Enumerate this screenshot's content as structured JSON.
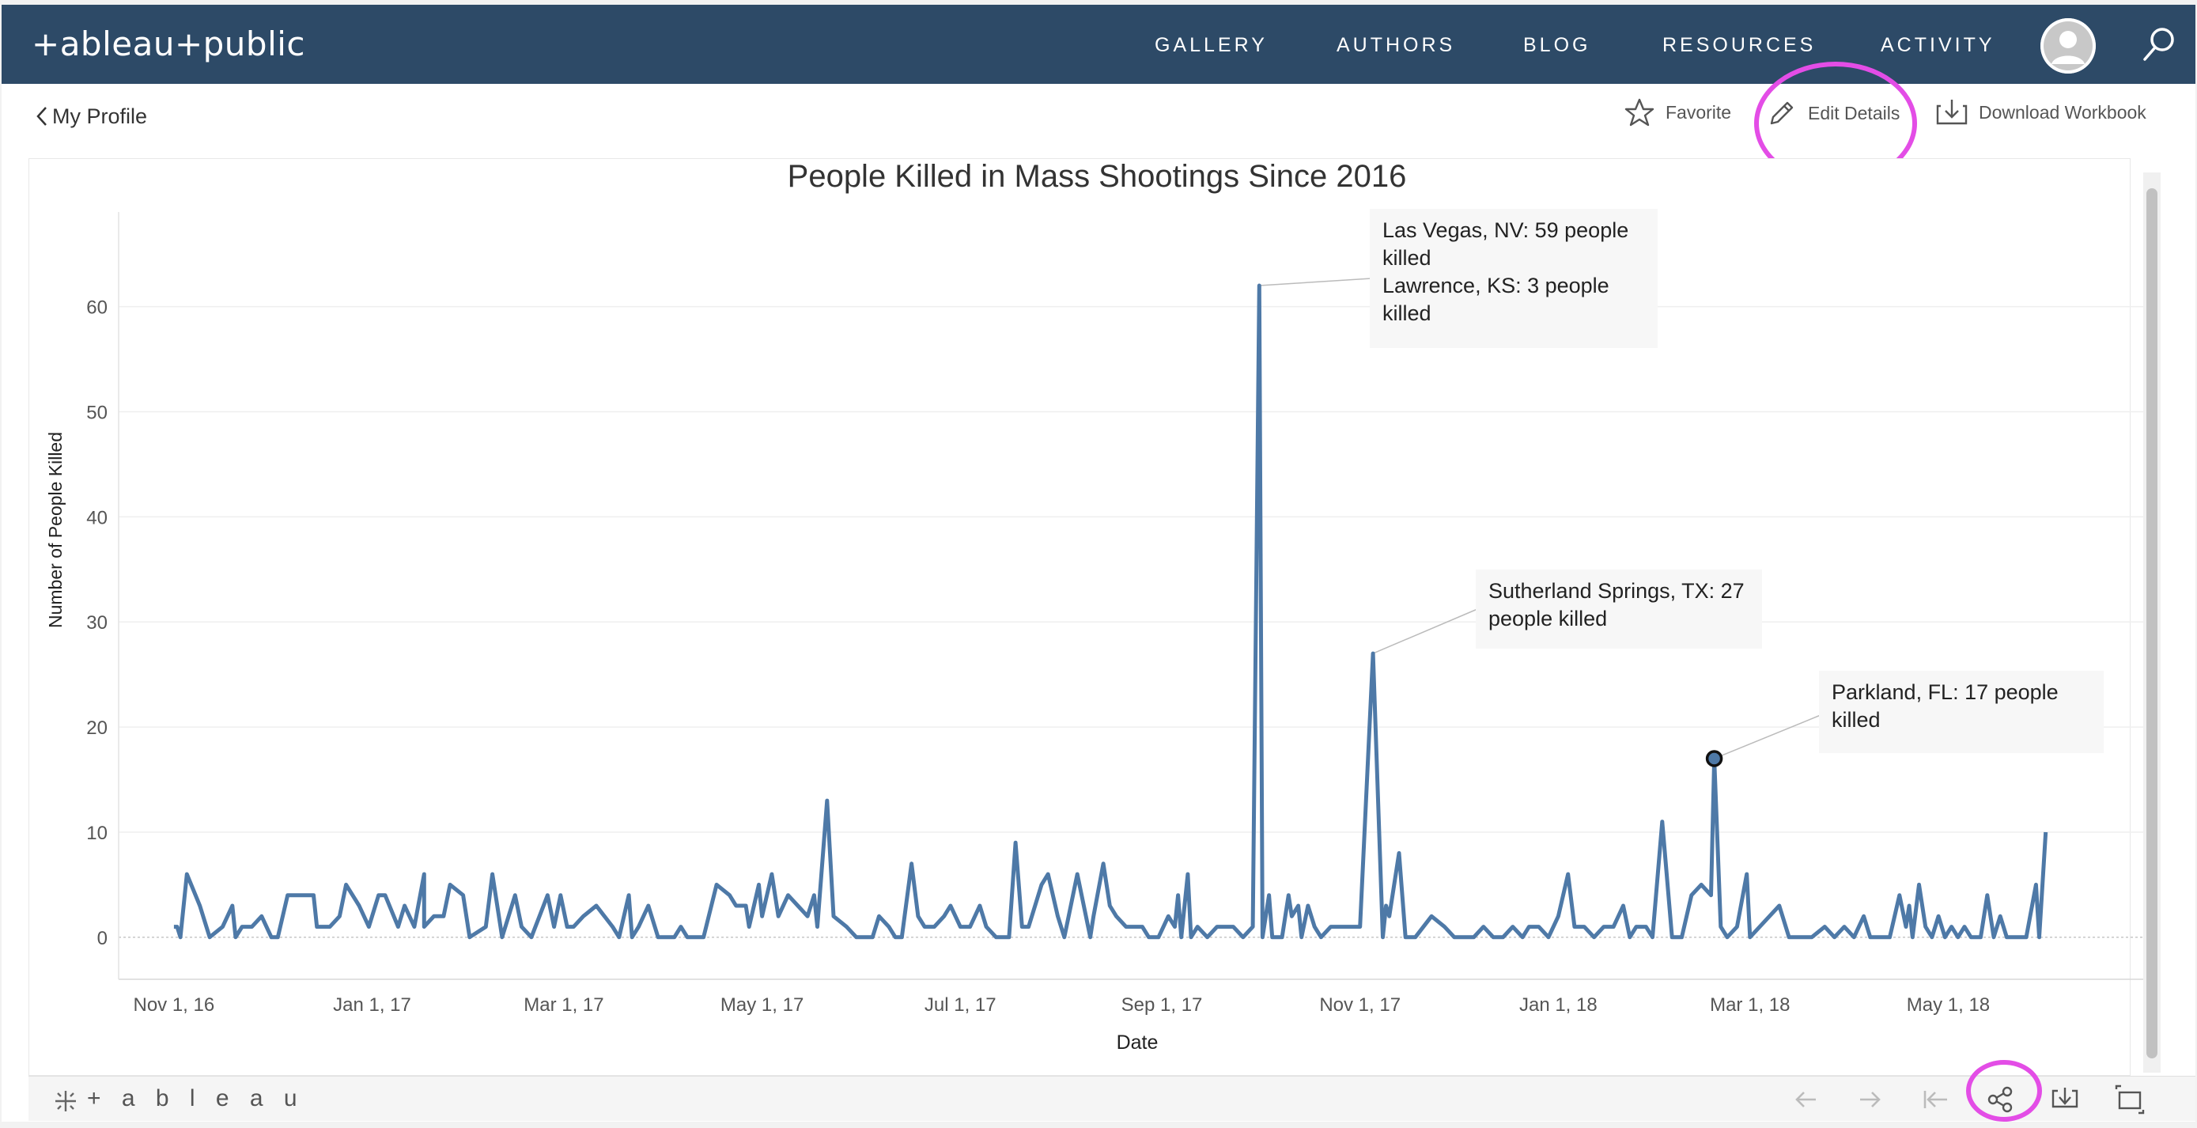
{
  "nav": {
    "logo_text": "+ableau+public",
    "links": [
      "GALLERY",
      "AUTHORS",
      "BLOG",
      "RESOURCES",
      "ACTIVITY"
    ]
  },
  "subbar": {
    "back_label": "My Profile",
    "favorite_label": "Favorite",
    "edit_label": "Edit Details",
    "download_label": "Download Workbook"
  },
  "toolbar": {
    "logo_text": "+ a b l e a u"
  },
  "colors": {
    "nav_bg": "#2d4a67",
    "line": "#4e79a7",
    "highlight_ring": "#e34de6"
  },
  "annotations": [
    {
      "id": "las-vegas",
      "lines": [
        "Las Vegas, NV: 59 people",
        "killed",
        "Lawrence, KS: 3 people",
        "killed"
      ]
    },
    {
      "id": "sutherland",
      "lines": [
        "Sutherland Springs, TX: 27",
        "people killed"
      ]
    },
    {
      "id": "parkland",
      "lines": [
        "Parkland, FL: 17 people",
        "killed"
      ]
    }
  ],
  "chart_data": {
    "type": "line",
    "title": "People Killed in Mass Shootings Since 2016",
    "xlabel": "Date",
    "ylabel": "Number of People Killed",
    "xlim": [
      "2016-10-15",
      "2018-06-30"
    ],
    "ylim": [
      -4,
      69
    ],
    "yticks": [
      0,
      10,
      20,
      30,
      40,
      50,
      60
    ],
    "xticks": [
      {
        "date": "2016-11-01",
        "label": "Nov 1, 16"
      },
      {
        "date": "2017-01-01",
        "label": "Jan 1, 17"
      },
      {
        "date": "2017-03-01",
        "label": "Mar 1, 17"
      },
      {
        "date": "2017-05-01",
        "label": "May 1, 17"
      },
      {
        "date": "2017-07-01",
        "label": "Jul 1, 17"
      },
      {
        "date": "2017-09-01",
        "label": "Sep 1, 17"
      },
      {
        "date": "2017-11-01",
        "label": "Nov 1, 17"
      },
      {
        "date": "2018-01-01",
        "label": "Jan 1, 18"
      },
      {
        "date": "2018-03-01",
        "label": "Mar 1, 18"
      },
      {
        "date": "2018-05-01",
        "label": "May 1, 18"
      }
    ],
    "grid": true,
    "series": [
      {
        "values": [
          [
            "2016-11-01",
            1
          ],
          [
            "2016-11-02",
            1
          ],
          [
            "2016-11-03",
            0
          ],
          [
            "2016-11-05",
            6
          ],
          [
            "2016-11-09",
            3
          ],
          [
            "2016-11-12",
            0
          ],
          [
            "2016-11-16",
            1
          ],
          [
            "2016-11-19",
            3
          ],
          [
            "2016-11-20",
            0
          ],
          [
            "2016-11-22",
            1
          ],
          [
            "2016-11-25",
            1
          ],
          [
            "2016-11-28",
            2
          ],
          [
            "2016-12-01",
            0
          ],
          [
            "2016-12-03",
            0
          ],
          [
            "2016-12-06",
            4
          ],
          [
            "2016-12-10",
            4
          ],
          [
            "2016-12-14",
            4
          ],
          [
            "2016-12-15",
            1
          ],
          [
            "2016-12-19",
            1
          ],
          [
            "2016-12-22",
            2
          ],
          [
            "2016-12-24",
            5
          ],
          [
            "2016-12-28",
            3
          ],
          [
            "2016-12-31",
            1
          ],
          [
            "2017-01-03",
            4
          ],
          [
            "2017-01-05",
            4
          ],
          [
            "2017-01-09",
            1
          ],
          [
            "2017-01-11",
            3
          ],
          [
            "2017-01-14",
            1
          ],
          [
            "2017-01-17",
            6
          ],
          [
            "2017-01-17",
            1
          ],
          [
            "2017-01-20",
            2
          ],
          [
            "2017-01-23",
            2
          ],
          [
            "2017-01-25",
            5
          ],
          [
            "2017-01-29",
            4
          ],
          [
            "2017-01-31",
            0
          ],
          [
            "2017-02-05",
            1
          ],
          [
            "2017-02-07",
            6
          ],
          [
            "2017-02-10",
            0
          ],
          [
            "2017-02-14",
            4
          ],
          [
            "2017-02-16",
            1
          ],
          [
            "2017-02-19",
            0
          ],
          [
            "2017-02-24",
            4
          ],
          [
            "2017-02-26",
            1
          ],
          [
            "2017-02-28",
            4
          ],
          [
            "2017-03-02",
            1
          ],
          [
            "2017-03-04",
            1
          ],
          [
            "2017-03-07",
            2
          ],
          [
            "2017-03-11",
            3
          ],
          [
            "2017-03-16",
            1
          ],
          [
            "2017-03-18",
            0
          ],
          [
            "2017-03-21",
            4
          ],
          [
            "2017-03-22",
            0
          ],
          [
            "2017-03-24",
            1
          ],
          [
            "2017-03-27",
            3
          ],
          [
            "2017-03-30",
            0
          ],
          [
            "2017-04-01",
            0
          ],
          [
            "2017-04-04",
            0
          ],
          [
            "2017-04-06",
            1
          ],
          [
            "2017-04-08",
            0
          ],
          [
            "2017-04-11",
            0
          ],
          [
            "2017-04-13",
            0
          ],
          [
            "2017-04-17",
            5
          ],
          [
            "2017-04-21",
            4
          ],
          [
            "2017-04-23",
            3
          ],
          [
            "2017-04-26",
            3
          ],
          [
            "2017-04-27",
            1
          ],
          [
            "2017-04-30",
            5
          ],
          [
            "2017-05-01",
            2
          ],
          [
            "2017-05-04",
            6
          ],
          [
            "2017-05-06",
            2
          ],
          [
            "2017-05-09",
            4
          ],
          [
            "2017-05-12",
            3
          ],
          [
            "2017-05-15",
            2
          ],
          [
            "2017-05-17",
            4
          ],
          [
            "2017-05-18",
            1
          ],
          [
            "2017-05-21",
            13
          ],
          [
            "2017-05-23",
            2
          ],
          [
            "2017-05-27",
            1
          ],
          [
            "2017-05-30",
            0
          ],
          [
            "2017-06-04",
            0
          ],
          [
            "2017-06-06",
            2
          ],
          [
            "2017-06-09",
            1
          ],
          [
            "2017-06-11",
            0
          ],
          [
            "2017-06-13",
            0
          ],
          [
            "2017-06-16",
            7
          ],
          [
            "2017-06-18",
            2
          ],
          [
            "2017-06-20",
            1
          ],
          [
            "2017-06-23",
            1
          ],
          [
            "2017-06-26",
            2
          ],
          [
            "2017-06-28",
            3
          ],
          [
            "2017-07-01",
            1
          ],
          [
            "2017-07-04",
            1
          ],
          [
            "2017-07-07",
            3
          ],
          [
            "2017-07-09",
            1
          ],
          [
            "2017-07-12",
            0
          ],
          [
            "2017-07-16",
            0
          ],
          [
            "2017-07-18",
            9
          ],
          [
            "2017-07-20",
            1
          ],
          [
            "2017-07-22",
            1
          ],
          [
            "2017-07-24",
            3
          ],
          [
            "2017-07-26",
            5
          ],
          [
            "2017-07-28",
            6
          ],
          [
            "2017-07-31",
            2
          ],
          [
            "2017-08-02",
            0
          ],
          [
            "2017-08-04",
            3
          ],
          [
            "2017-08-06",
            6
          ],
          [
            "2017-08-08",
            3
          ],
          [
            "2017-08-10",
            0
          ],
          [
            "2017-08-11",
            2
          ],
          [
            "2017-08-14",
            7
          ],
          [
            "2017-08-16",
            3
          ],
          [
            "2017-08-18",
            2
          ],
          [
            "2017-08-21",
            1
          ],
          [
            "2017-08-23",
            1
          ],
          [
            "2017-08-26",
            1
          ],
          [
            "2017-08-28",
            0
          ],
          [
            "2017-08-31",
            0
          ],
          [
            "2017-09-03",
            2
          ],
          [
            "2017-09-05",
            1
          ],
          [
            "2017-09-06",
            4
          ],
          [
            "2017-09-07",
            0
          ],
          [
            "2017-09-09",
            6
          ],
          [
            "2017-09-10",
            0
          ],
          [
            "2017-09-12",
            1
          ],
          [
            "2017-09-15",
            0
          ],
          [
            "2017-09-18",
            1
          ],
          [
            "2017-09-20",
            1
          ],
          [
            "2017-09-23",
            1
          ],
          [
            "2017-09-26",
            0
          ],
          [
            "2017-09-29",
            1
          ],
          [
            "2017-10-01",
            62
          ],
          [
            "2017-10-02",
            0
          ],
          [
            "2017-10-04",
            4
          ],
          [
            "2017-10-05",
            0
          ],
          [
            "2017-10-08",
            0
          ],
          [
            "2017-10-10",
            4
          ],
          [
            "2017-10-11",
            2
          ],
          [
            "2017-10-13",
            3
          ],
          [
            "2017-10-14",
            0
          ],
          [
            "2017-10-16",
            3
          ],
          [
            "2017-10-18",
            1
          ],
          [
            "2017-10-20",
            0
          ],
          [
            "2017-10-23",
            1
          ],
          [
            "2017-10-26",
            1
          ],
          [
            "2017-10-29",
            1
          ],
          [
            "2017-11-01",
            1
          ],
          [
            "2017-11-05",
            27
          ],
          [
            "2017-11-08",
            0
          ],
          [
            "2017-11-09",
            3
          ],
          [
            "2017-11-10",
            2
          ],
          [
            "2017-11-13",
            8
          ],
          [
            "2017-11-15",
            0
          ],
          [
            "2017-11-18",
            0
          ],
          [
            "2017-11-23",
            2
          ],
          [
            "2017-11-27",
            1
          ],
          [
            "2017-11-30",
            0
          ],
          [
            "2017-12-03",
            0
          ],
          [
            "2017-12-06",
            0
          ],
          [
            "2017-12-09",
            1
          ],
          [
            "2017-12-12",
            0
          ],
          [
            "2017-12-15",
            0
          ],
          [
            "2017-12-18",
            1
          ],
          [
            "2017-12-21",
            0
          ],
          [
            "2017-12-23",
            1
          ],
          [
            "2017-12-26",
            1
          ],
          [
            "2017-12-29",
            0
          ],
          [
            "2018-01-01",
            2
          ],
          [
            "2018-01-04",
            6
          ],
          [
            "2018-01-06",
            1
          ],
          [
            "2018-01-09",
            1
          ],
          [
            "2018-01-12",
            0
          ],
          [
            "2018-01-15",
            1
          ],
          [
            "2018-01-18",
            1
          ],
          [
            "2018-01-21",
            3
          ],
          [
            "2018-01-23",
            0
          ],
          [
            "2018-01-25",
            1
          ],
          [
            "2018-01-28",
            1
          ],
          [
            "2018-01-30",
            0
          ],
          [
            "2018-02-02",
            11
          ],
          [
            "2018-02-05",
            0
          ],
          [
            "2018-02-08",
            0
          ],
          [
            "2018-02-11",
            4
          ],
          [
            "2018-02-14",
            5
          ],
          [
            "2018-02-17",
            4
          ],
          [
            "2018-02-18",
            17
          ],
          [
            "2018-02-20",
            1
          ],
          [
            "2018-02-22",
            0
          ],
          [
            "2018-02-25",
            1
          ],
          [
            "2018-02-28",
            6
          ],
          [
            "2018-03-01",
            0
          ],
          [
            "2018-03-04",
            1
          ],
          [
            "2018-03-07",
            2
          ],
          [
            "2018-03-10",
            3
          ],
          [
            "2018-03-13",
            0
          ],
          [
            "2018-03-16",
            0
          ],
          [
            "2018-03-20",
            0
          ],
          [
            "2018-03-24",
            1
          ],
          [
            "2018-03-27",
            0
          ],
          [
            "2018-03-30",
            1
          ],
          [
            "2018-04-02",
            0
          ],
          [
            "2018-04-05",
            2
          ],
          [
            "2018-04-07",
            0
          ],
          [
            "2018-04-10",
            0
          ],
          [
            "2018-04-13",
            0
          ],
          [
            "2018-04-16",
            4
          ],
          [
            "2018-04-18",
            1
          ],
          [
            "2018-04-19",
            3
          ],
          [
            "2018-04-20",
            0
          ],
          [
            "2018-04-22",
            5
          ],
          [
            "2018-04-24",
            1
          ],
          [
            "2018-04-26",
            0
          ],
          [
            "2018-04-28",
            2
          ],
          [
            "2018-04-30",
            0
          ],
          [
            "2018-05-02",
            1
          ],
          [
            "2018-05-04",
            0
          ],
          [
            "2018-05-06",
            1
          ],
          [
            "2018-05-08",
            0
          ],
          [
            "2018-05-11",
            0
          ],
          [
            "2018-05-13",
            4
          ],
          [
            "2018-05-15",
            0
          ],
          [
            "2018-05-17",
            2
          ],
          [
            "2018-05-19",
            0
          ],
          [
            "2018-05-22",
            0
          ],
          [
            "2018-05-25",
            0
          ],
          [
            "2018-05-28",
            5
          ],
          [
            "2018-05-29",
            0
          ],
          [
            "2018-05-31",
            10
          ]
        ]
      }
    ],
    "highlight": {
      "date": "2018-02-18",
      "value": 17
    }
  }
}
